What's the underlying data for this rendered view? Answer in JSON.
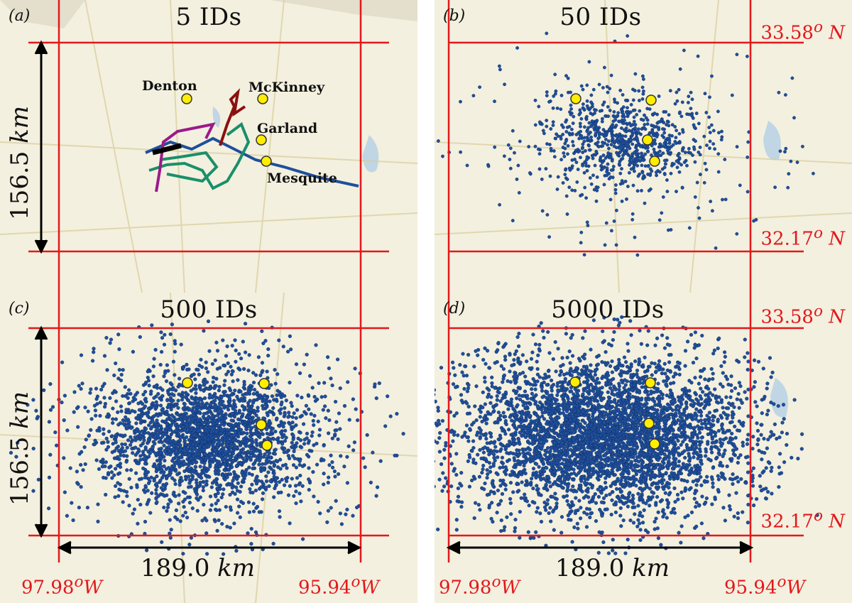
{
  "panels": [
    {
      "label": "(a)",
      "title": "5 IDs"
    },
    {
      "label": "(b)",
      "title": "50 IDs"
    },
    {
      "label": "(c)",
      "title": "500 IDs"
    },
    {
      "label": "(d)",
      "title": "5000 IDs"
    }
  ],
  "bounds": {
    "north": "33.58",
    "south": "32.17",
    "west": "97.98",
    "east": "95.94",
    "deg": "o",
    "n_suffix": "N",
    "w_suffix": "W"
  },
  "dimensions": {
    "height_value": "156.5",
    "width_value": "189.0",
    "unit": "km"
  },
  "cities": [
    "Denton",
    "McKinney",
    "Garland",
    "Mesquite"
  ],
  "colors": {
    "frame": "#e3181c",
    "points": "#1f4f9c",
    "city_marker": "#ffee00",
    "map_bg": "#f3f0df",
    "track_green": "#1a8f6a",
    "track_purple": "#9b1a8a",
    "track_red": "#8b1010",
    "track_black": "#000000"
  }
}
